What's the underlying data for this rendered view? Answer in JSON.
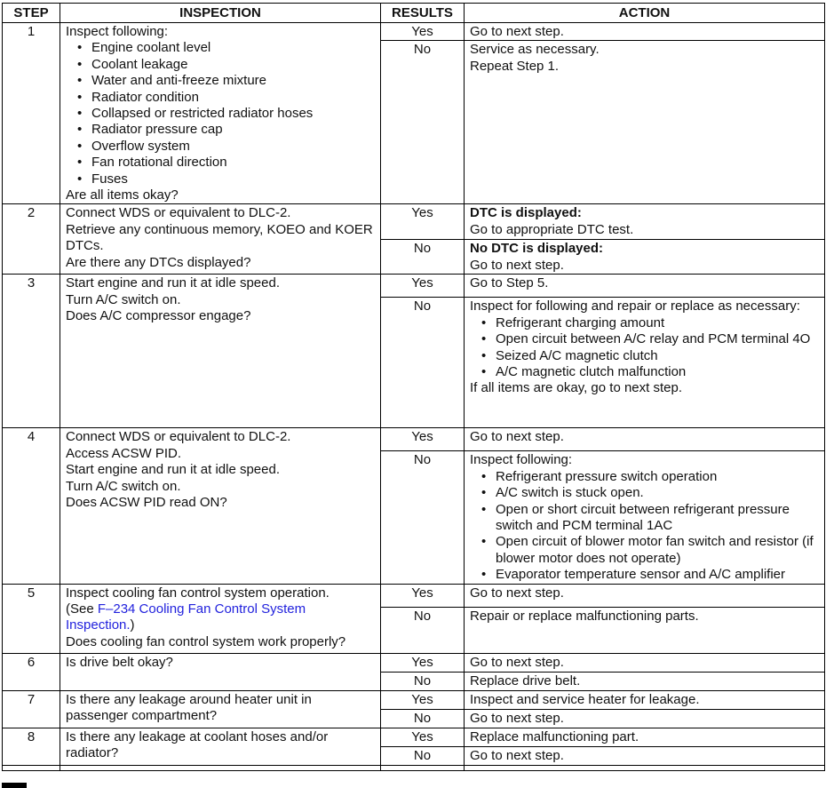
{
  "page": {
    "background": "#ffffff",
    "text_color": "#111111",
    "border_color": "#000000",
    "link_color": "#2222dd"
  },
  "table": {
    "headers": [
      "STEP",
      "INSPECTION",
      "RESULTS",
      "ACTION"
    ],
    "rows": [
      {
        "step": "1",
        "inspection": [
          "Inspect following:",
          {
            "b": "Engine coolant level"
          },
          {
            "b": "Coolant leakage"
          },
          {
            "b": "Water and anti-freeze mixture"
          },
          {
            "b": "Radiator condition"
          },
          {
            "b": "Collapsed or restricted radiator hoses"
          },
          {
            "b": "Radiator pressure cap"
          },
          {
            "b": "Overflow system"
          },
          {
            "b": "Fan rotational direction"
          },
          {
            "b": "Fuses"
          },
          "Are all items okay?"
        ],
        "results": [
          {
            "label": "Yes",
            "action": [
              "Go to next step."
            ]
          },
          {
            "label": "No",
            "action": [
              "Service as necessary.",
              "Repeat Step 1."
            ]
          }
        ]
      },
      {
        "step": "2",
        "inspection": [
          "Connect WDS or equivalent to DLC-2.",
          "Retrieve any continuous memory, KOEO and KOER DTCs.",
          "Are there any DTCs displayed?"
        ],
        "results": [
          {
            "label": "Yes",
            "action": [
              {
                "bold": "DTC is displayed:"
              },
              "Go to appropriate DTC test."
            ]
          },
          {
            "label": "No",
            "action": [
              {
                "bold": "No DTC is displayed:"
              },
              "Go to next step."
            ]
          }
        ]
      },
      {
        "step": "3",
        "inspection": [
          "Start engine and run it at idle speed.",
          "Turn A/C switch on.",
          "Does A/C compressor engage?"
        ],
        "results": [
          {
            "label": "Yes",
            "action": [
              "Go to Step 5."
            ]
          },
          {
            "label": "No",
            "action": [
              "Inspect for following and repair or replace as necessary:",
              {
                "b": "Refrigerant charging amount"
              },
              {
                "b": "Open circuit between A/C relay and PCM terminal 4O"
              },
              {
                "b": "Seized A/C magnetic clutch"
              },
              {
                "b": "A/C magnetic clutch malfunction"
              },
              "If all items are okay, go to next step."
            ]
          }
        ]
      },
      {
        "step": "4",
        "inspection": [
          "Connect WDS or equivalent to DLC-2.",
          "Access ACSW PID.",
          "Start engine and run it at idle speed.",
          "Turn A/C switch on.",
          "Does ACSW PID read ON?"
        ],
        "results": [
          {
            "label": "Yes",
            "action": [
              "Go to next step."
            ]
          },
          {
            "label": "No",
            "action": [
              "Inspect following:",
              {
                "b": "Refrigerant pressure switch operation"
              },
              {
                "b": "A/C switch is stuck open."
              },
              {
                "b": "Open or short circuit between refrigerant pressure switch and PCM terminal 1AC"
              },
              {
                "b": "Open circuit of blower motor fan switch and resistor (if blower motor does not operate)"
              },
              {
                "b": "Evaporator temperature sensor and A/C amplifier"
              }
            ]
          }
        ]
      },
      {
        "step": "5",
        "inspection": [
          "Inspect cooling fan control system operation.",
          {
            "parts": [
              [
                "(See ",
                "plain"
              ],
              [
                "F–234 Cooling Fan Control System Inspection.",
                "link"
              ],
              [
                ")",
                "plain"
              ]
            ]
          },
          "Does cooling fan control system work properly?"
        ],
        "results": [
          {
            "label": "Yes",
            "action": [
              "Go to next step."
            ]
          },
          {
            "label": "No",
            "action": [
              "Repair or replace malfunctioning parts."
            ]
          }
        ]
      },
      {
        "step": "6",
        "inspection": [
          "Is drive belt okay?"
        ],
        "results": [
          {
            "label": "Yes",
            "action": [
              "Go to next step."
            ]
          },
          {
            "label": "No",
            "action": [
              "Replace drive belt."
            ]
          }
        ]
      },
      {
        "step": "7",
        "inspection": [
          "Is there any leakage around heater unit in passenger compartment?"
        ],
        "results": [
          {
            "label": "Yes",
            "action": [
              "Inspect and service heater for leakage."
            ]
          },
          {
            "label": "No",
            "action": [
              "Go to next step."
            ]
          }
        ]
      },
      {
        "step": "8",
        "inspection": [
          "Is there any leakage at coolant hoses and/or radiator?"
        ],
        "results": [
          {
            "label": "Yes",
            "action": [
              "Replace malfunctioning part."
            ]
          },
          {
            "label": "No",
            "action": [
              "Go to next step."
            ]
          }
        ]
      }
    ]
  }
}
